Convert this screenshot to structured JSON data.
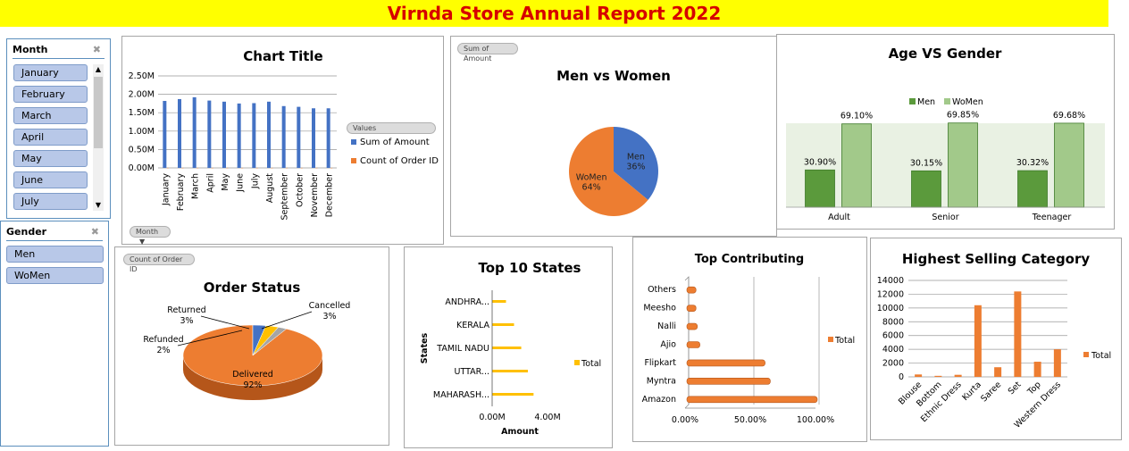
{
  "report_title": "Virnda Store Annual Report 2022",
  "slicers": {
    "month": {
      "header": "Month",
      "filter_icon": "clear-filter-icon",
      "items": [
        "January",
        "February",
        "March",
        "April",
        "May",
        "June",
        "July"
      ]
    },
    "gender": {
      "header": "Gender",
      "filter_icon": "clear-filter-icon",
      "items": [
        "Men",
        "WoMen"
      ]
    }
  },
  "monthly": {
    "field_button": "Month",
    "legend_header": "Values",
    "chart_data": {
      "type": "bar",
      "title": "Chart Title",
      "categories": [
        "January",
        "February",
        "March",
        "April",
        "May",
        "June",
        "July",
        "August",
        "September",
        "October",
        "November",
        "December"
      ],
      "series": [
        {
          "name": "Sum of Amount",
          "values": [
            1.82,
            1.87,
            1.92,
            1.83,
            1.8,
            1.75,
            1.76,
            1.8,
            1.68,
            1.66,
            1.62,
            1.62
          ],
          "color": "#4472c4"
        },
        {
          "name": "Count of Order ID",
          "values": [
            0.003,
            0.003,
            0.003,
            0.003,
            0.003,
            0.003,
            0.003,
            0.003,
            0.003,
            0.003,
            0.003,
            0.003
          ],
          "color": "#ed7d31"
        }
      ],
      "ylim": [
        0,
        2.5
      ],
      "yticks": [
        "0.00M",
        "0.50M",
        "1.00M",
        "1.50M",
        "2.00M",
        "2.50M"
      ],
      "grid": true,
      "legend": "right"
    }
  },
  "men_women": {
    "field_button": "Sum of Amount",
    "chart_data": {
      "type": "pie",
      "title": "Men vs Women",
      "labels": [
        "Men",
        "WoMen"
      ],
      "values": [
        36,
        64
      ],
      "value_labels": [
        "36%",
        "64%"
      ],
      "colors": [
        "#4472c4",
        "#ed7d31"
      ]
    }
  },
  "age_gender": {
    "chart_data": {
      "type": "bar",
      "title": "Age VS Gender",
      "categories": [
        "Adult",
        "Senior",
        "Teenager"
      ],
      "series": [
        {
          "name": "Men",
          "values": [
            30.9,
            30.15,
            30.32
          ],
          "labels": [
            "30.90%",
            "30.15%",
            "30.32%"
          ],
          "color": "#5b9a3c"
        },
        {
          "name": "WoMen",
          "values": [
            69.1,
            69.85,
            69.68
          ],
          "labels": [
            "69.10%",
            "69.85%",
            "69.68%"
          ],
          "color": "#a2c98a"
        }
      ],
      "ylim": [
        0,
        80
      ],
      "legend": "top"
    }
  },
  "order_status": {
    "field_button": "Count of Order ID",
    "chart_data": {
      "type": "pie",
      "title": "Order Status",
      "labels": [
        "Delivered",
        "Cancelled",
        "Returned",
        "Refunded"
      ],
      "values": [
        92,
        3,
        3,
        2
      ],
      "value_labels": [
        "92%",
        "3%",
        "3%",
        "2%"
      ],
      "colors": [
        "#ed7d31",
        "#4472c4",
        "#ffc000",
        "#a5a5a5"
      ]
    }
  },
  "top_states": {
    "chart_data": {
      "type": "bar",
      "title": "Top 10 States",
      "categories": [
        "MAHARASH...",
        "UTTAR...",
        "TAMIL NADU",
        "KERALA",
        "ANDHRA..."
      ],
      "series": [
        {
          "name": "Total",
          "values": [
            2.99,
            2.58,
            2.1,
            1.58,
            1.0
          ],
          "color": "#ffc000"
        }
      ],
      "xticks": [
        "0.00M",
        "4.00M"
      ],
      "xlabel": "Amount",
      "ylabel": "States",
      "xlim": [
        0,
        4
      ],
      "legend": "right"
    }
  },
  "top_contributing": {
    "chart_data": {
      "type": "bar",
      "title": "Top Contributing",
      "categories": [
        "Amazon",
        "Myntra",
        "Flipkart",
        "Ajio",
        "Nalli",
        "Meesho",
        "Others"
      ],
      "series": [
        {
          "name": "Total",
          "values": [
            100,
            64,
            60,
            10,
            8,
            7,
            7
          ],
          "color": "#ed7d31"
        }
      ],
      "xticks": [
        "0.00%",
        "50.00%",
        "100.00%"
      ],
      "xlim": [
        0,
        100
      ],
      "legend": "right"
    }
  },
  "highest_category": {
    "chart_data": {
      "type": "bar",
      "title": "Highest Selling Category",
      "categories": [
        "Blouse",
        "Bottom",
        "Ethnic Dress",
        "Kurta",
        "Saree",
        "Set",
        "Top",
        "Western Dress"
      ],
      "series": [
        {
          "name": "Total",
          "values": [
            350,
            150,
            300,
            10400,
            1400,
            12400,
            2200,
            4000
          ],
          "color": "#ed7d31"
        }
      ],
      "ylim": [
        0,
        14000
      ],
      "yticks": [
        "0",
        "2000",
        "4000",
        "6000",
        "8000",
        "10000",
        "12000",
        "14000"
      ],
      "grid": true,
      "legend": "right"
    }
  }
}
